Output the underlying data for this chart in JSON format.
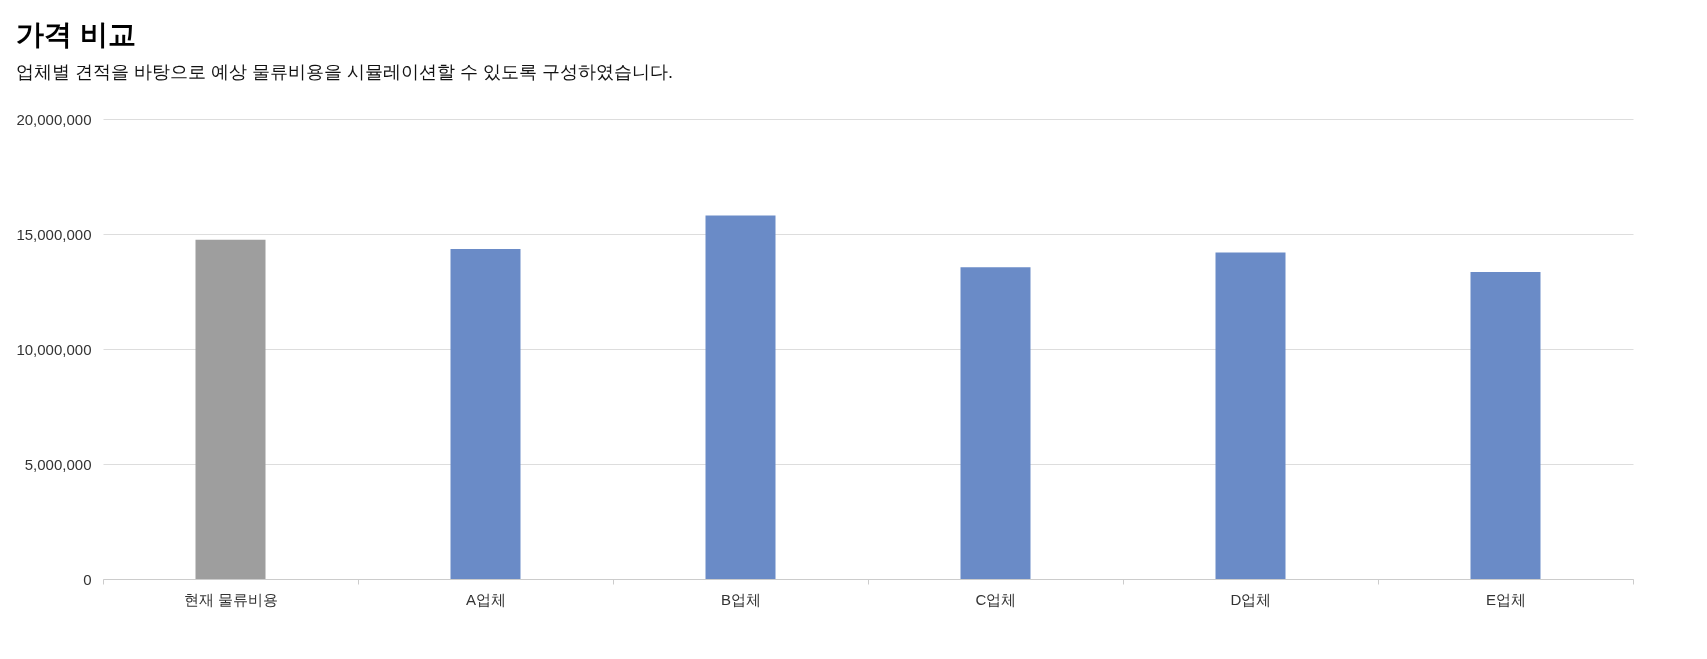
{
  "chart_data": {
    "type": "bar",
    "title": "가격 비교",
    "subtitle": "업체별 견적을 바탕으로 예상 물류비용을 시뮬레이션할 수 있도록 구성하였습니다.",
    "categories": [
      "현재 물류비용",
      "A업체",
      "B업체",
      "C업체",
      "D업체",
      "E업체"
    ],
    "values": [
      14750000,
      14350000,
      15800000,
      13550000,
      14200000,
      13350000
    ],
    "colors": [
      "#9e9e9e",
      "#6a8bc7",
      "#6a8bc7",
      "#6a8bc7",
      "#6a8bc7",
      "#6a8bc7"
    ],
    "ylim": [
      0,
      20000000
    ],
    "yticks": [
      0,
      {
        "value": 5000000,
        "label": "5,000,000"
      },
      {
        "value": 10000000,
        "label": "10,000,000"
      },
      {
        "value": 15000000,
        "label": "15,000,000"
      },
      {
        "value": 20000000,
        "label": "20,000,000"
      }
    ],
    "grid": "y"
  }
}
